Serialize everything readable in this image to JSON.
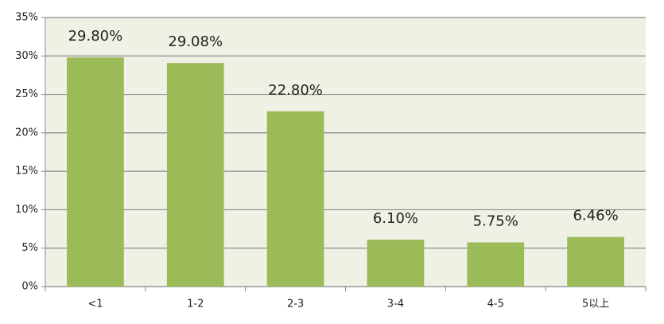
{
  "chart_data": {
    "type": "bar",
    "categories": [
      "<1",
      "1-2",
      "2-3",
      "3-4",
      "4-5",
      "5以上"
    ],
    "values": [
      29.8,
      29.08,
      22.8,
      6.1,
      5.75,
      6.46
    ],
    "value_labels": [
      "29.80%",
      "29.08%",
      "22.80%",
      "6.10%",
      "5.75%",
      "6.46%"
    ],
    "color": "#9bbb59",
    "ylim": [
      0,
      35
    ],
    "yticks": [
      {
        "value": 0,
        "label": "0%"
      },
      {
        "value": 5,
        "label": "5%"
      },
      {
        "value": 10,
        "label": "10%"
      },
      {
        "value": 15,
        "label": "15%"
      },
      {
        "value": 20,
        "label": "20%"
      },
      {
        "value": 25,
        "label": "25%"
      },
      {
        "value": 30,
        "label": "30%"
      },
      {
        "value": 35,
        "label": "35%"
      }
    ],
    "grid": true
  }
}
